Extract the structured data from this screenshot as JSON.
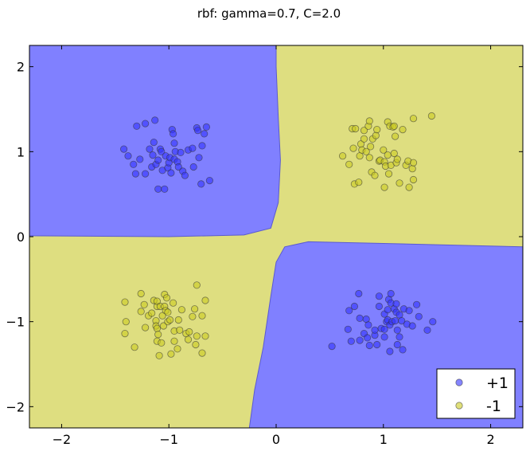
{
  "chart_data": {
    "type": "scatter",
    "title": "rbf: gamma=0.7, C=2.0",
    "xlabel": "",
    "ylabel": "",
    "xlim": [
      -2.3,
      2.3
    ],
    "ylim": [
      -2.25,
      2.25
    ],
    "xticks": [
      -2,
      -1,
      0,
      1,
      2
    ],
    "yticks": [
      -2,
      -1,
      0,
      1,
      2
    ],
    "xtick_labels": [
      "−2",
      "−1",
      "0",
      "1",
      "2"
    ],
    "ytick_labels": [
      "−2",
      "−1",
      "0",
      "1",
      "2"
    ],
    "grid": false,
    "legend_position": "bottom-right",
    "background_regions": [
      {
        "class": "+1",
        "color": "#8080ff",
        "regions": [
          "upper-left quadrant",
          "lower-right quadrant"
        ]
      },
      {
        "class": "-1",
        "color": "#dede80",
        "regions": [
          "upper-right quadrant",
          "lower-left quadrant"
        ]
      }
    ],
    "series": [
      {
        "name": "+1",
        "color": "#3333ff",
        "points": [
          [
            -1.42,
            1.03
          ],
          [
            -1.38,
            0.95
          ],
          [
            -1.33,
            0.85
          ],
          [
            -1.31,
            0.74
          ],
          [
            -1.3,
            1.3
          ],
          [
            -1.27,
            0.91
          ],
          [
            -1.22,
            1.33
          ],
          [
            -1.22,
            0.74
          ],
          [
            -1.18,
            1.03
          ],
          [
            -1.16,
            0.82
          ],
          [
            -1.15,
            0.96
          ],
          [
            -1.14,
            1.11
          ],
          [
            -1.13,
            1.37
          ],
          [
            -1.12,
            0.85
          ],
          [
            -1.1,
            0.56
          ],
          [
            -1.1,
            0.9
          ],
          [
            -1.08,
            1.03
          ],
          [
            -1.07,
            1.0
          ],
          [
            -1.06,
            0.78
          ],
          [
            -1.04,
            0.56
          ],
          [
            -1.03,
            0.95
          ],
          [
            -1.01,
            0.81
          ],
          [
            -1.0,
            0.87
          ],
          [
            -0.99,
            0.93
          ],
          [
            -0.98,
            0.75
          ],
          [
            -0.97,
            1.26
          ],
          [
            -0.96,
            1.21
          ],
          [
            -0.95,
            0.91
          ],
          [
            -0.95,
            1.1
          ],
          [
            -0.94,
            1.0
          ],
          [
            -0.92,
            0.88
          ],
          [
            -0.91,
            0.82
          ],
          [
            -0.89,
            0.99
          ],
          [
            -0.87,
            0.77
          ],
          [
            -0.85,
            0.72
          ],
          [
            -0.82,
            1.02
          ],
          [
            -0.78,
            1.04
          ],
          [
            -0.77,
            0.82
          ],
          [
            -0.74,
            1.28
          ],
          [
            -0.73,
            1.25
          ],
          [
            -0.72,
            0.93
          ],
          [
            -0.7,
            0.62
          ],
          [
            -0.69,
            1.07
          ],
          [
            -0.67,
            1.21
          ],
          [
            -0.65,
            1.29
          ],
          [
            -0.62,
            0.66
          ],
          [
            0.52,
            -1.29
          ],
          [
            0.67,
            -1.09
          ],
          [
            0.68,
            -0.87
          ],
          [
            0.7,
            -1.23
          ],
          [
            0.73,
            -0.82
          ],
          [
            0.77,
            -0.67
          ],
          [
            0.78,
            -0.96
          ],
          [
            0.78,
            -1.22
          ],
          [
            0.82,
            -1.14
          ],
          [
            0.84,
            -0.97
          ],
          [
            0.85,
            -1.19
          ],
          [
            0.86,
            -1.04
          ],
          [
            0.87,
            -1.28
          ],
          [
            0.92,
            -1.16
          ],
          [
            0.92,
            -1.1
          ],
          [
            0.94,
            -1.27
          ],
          [
            0.96,
            -0.82
          ],
          [
            0.96,
            -0.7
          ],
          [
            0.98,
            -1.08
          ],
          [
            1.01,
            -1.09
          ],
          [
            1.01,
            -0.91
          ],
          [
            1.01,
            -1.18
          ],
          [
            1.03,
            -1.0
          ],
          [
            1.04,
            -0.86
          ],
          [
            1.04,
            -0.98
          ],
          [
            1.05,
            -0.74
          ],
          [
            1.06,
            -1.35
          ],
          [
            1.06,
            -1.04
          ],
          [
            1.07,
            -0.78
          ],
          [
            1.07,
            -0.67
          ],
          [
            1.08,
            -1.0
          ],
          [
            1.1,
            -0.85
          ],
          [
            1.11,
            -0.99
          ],
          [
            1.12,
            -0.89
          ],
          [
            1.12,
            -0.79
          ],
          [
            1.13,
            -1.1
          ],
          [
            1.13,
            -1.27
          ],
          [
            1.15,
            -0.92
          ],
          [
            1.15,
            -1.18
          ],
          [
            1.17,
            -0.99
          ],
          [
            1.18,
            -1.33
          ],
          [
            1.19,
            -0.85
          ],
          [
            1.22,
            -1.03
          ],
          [
            1.24,
            -0.87
          ],
          [
            1.27,
            -1.05
          ],
          [
            1.31,
            -0.8
          ],
          [
            1.33,
            -0.94
          ],
          [
            1.41,
            -1.1
          ],
          [
            1.46,
            -1.0
          ]
        ]
      },
      {
        "name": "-1",
        "color": "#cccc22",
        "points": [
          [
            0.62,
            0.95
          ],
          [
            0.68,
            0.85
          ],
          [
            0.71,
            1.27
          ],
          [
            0.72,
            1.04
          ],
          [
            0.73,
            0.62
          ],
          [
            0.74,
            1.27
          ],
          [
            0.77,
            0.64
          ],
          [
            0.78,
            0.95
          ],
          [
            0.79,
            1.09
          ],
          [
            0.8,
            1.02
          ],
          [
            0.82,
            1.15
          ],
          [
            0.82,
            1.25
          ],
          [
            0.84,
            1.0
          ],
          [
            0.86,
            1.3
          ],
          [
            0.87,
            1.36
          ],
          [
            0.87,
            0.93
          ],
          [
            0.88,
            1.06
          ],
          [
            0.89,
            0.76
          ],
          [
            0.9,
            1.15
          ],
          [
            0.92,
            0.72
          ],
          [
            0.93,
            1.19
          ],
          [
            0.94,
            1.26
          ],
          [
            0.96,
            0.89
          ],
          [
            0.97,
            0.9
          ],
          [
            1.0,
            1.02
          ],
          [
            1.01,
            0.88
          ],
          [
            1.01,
            0.58
          ],
          [
            1.02,
            0.83
          ],
          [
            1.04,
            1.35
          ],
          [
            1.04,
            0.96
          ],
          [
            1.05,
            0.74
          ],
          [
            1.06,
            1.3
          ],
          [
            1.07,
            0.84
          ],
          [
            1.09,
            1.29
          ],
          [
            1.1,
            0.98
          ],
          [
            1.1,
            1.3
          ],
          [
            1.11,
            1.18
          ],
          [
            1.12,
            0.87
          ],
          [
            1.13,
            0.91
          ],
          [
            1.15,
            0.63
          ],
          [
            1.18,
            1.26
          ],
          [
            1.21,
            0.84
          ],
          [
            1.23,
            0.89
          ],
          [
            1.24,
            0.58
          ],
          [
            1.27,
            0.8
          ],
          [
            1.28,
            0.67
          ],
          [
            1.28,
            0.87
          ],
          [
            1.28,
            1.39
          ],
          [
            1.45,
            1.42
          ],
          [
            -1.41,
            -0.77
          ],
          [
            -1.41,
            -1.14
          ],
          [
            -1.4,
            -1.0
          ],
          [
            -1.32,
            -1.3
          ],
          [
            -1.26,
            -0.67
          ],
          [
            -1.26,
            -0.88
          ],
          [
            -1.23,
            -0.8
          ],
          [
            -1.22,
            -1.07
          ],
          [
            -1.19,
            -0.93
          ],
          [
            -1.16,
            -0.9
          ],
          [
            -1.14,
            -0.75
          ],
          [
            -1.12,
            -0.99
          ],
          [
            -1.12,
            -1.05
          ],
          [
            -1.11,
            -0.82
          ],
          [
            -1.11,
            -0.76
          ],
          [
            -1.11,
            -1.08
          ],
          [
            -1.11,
            -1.23
          ],
          [
            -1.1,
            -1.15
          ],
          [
            -1.09,
            -1.4
          ],
          [
            -1.08,
            -0.82
          ],
          [
            -1.07,
            -1.25
          ],
          [
            -1.06,
            -0.93
          ],
          [
            -1.05,
            -1.05
          ],
          [
            -1.04,
            -0.68
          ],
          [
            -1.04,
            -0.82
          ],
          [
            -1.03,
            -0.87
          ],
          [
            -1.02,
            -0.72
          ],
          [
            -1.01,
            -0.89
          ],
          [
            -1.01,
            -1.0
          ],
          [
            -0.99,
            -0.98
          ],
          [
            -0.98,
            -1.38
          ],
          [
            -0.96,
            -0.78
          ],
          [
            -0.95,
            -1.11
          ],
          [
            -0.95,
            -1.23
          ],
          [
            -0.92,
            -1.32
          ],
          [
            -0.91,
            -0.98
          ],
          [
            -0.9,
            -1.1
          ],
          [
            -0.88,
            -0.86
          ],
          [
            -0.84,
            -1.14
          ],
          [
            -0.82,
            -1.21
          ],
          [
            -0.81,
            -1.12
          ],
          [
            -0.78,
            -0.94
          ],
          [
            -0.76,
            -0.85
          ],
          [
            -0.75,
            -1.27
          ],
          [
            -0.74,
            -1.17
          ],
          [
            -0.74,
            -0.57
          ],
          [
            -0.69,
            -1.37
          ],
          [
            -0.69,
            -0.93
          ],
          [
            -0.66,
            -1.17
          ],
          [
            -0.66,
            -0.75
          ]
        ]
      }
    ]
  }
}
